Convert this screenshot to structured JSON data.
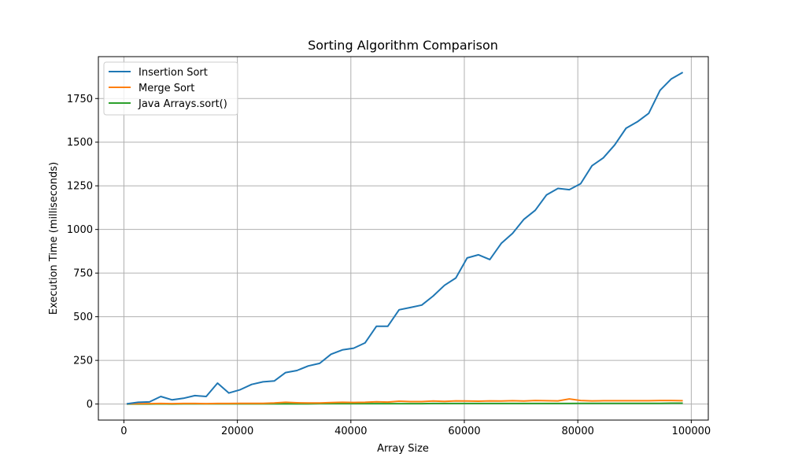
{
  "chart_data": {
    "type": "line",
    "title": "Sorting Algorithm Comparison",
    "xlabel": "Array Size",
    "ylabel": "Execution Time (milliseconds)",
    "xlim": [
      -4500,
      103000
    ],
    "ylim": [
      -92,
      1990
    ],
    "xticks": [
      0,
      20000,
      40000,
      60000,
      80000,
      100000
    ],
    "yticks": [
      0,
      250,
      500,
      750,
      1000,
      1250,
      1500,
      1750
    ],
    "grid": true,
    "legend_position": "top-left",
    "x": [
      500,
      2500,
      4500,
      6500,
      8500,
      10500,
      12500,
      14500,
      16500,
      18500,
      20500,
      22500,
      24500,
      26500,
      28500,
      30500,
      32500,
      34500,
      36500,
      38500,
      40500,
      42500,
      44500,
      46500,
      48500,
      50500,
      52500,
      54500,
      56500,
      58500,
      60500,
      62500,
      64500,
      66500,
      68500,
      70500,
      72500,
      74500,
      76500,
      78500,
      80500,
      82500,
      84500,
      86500,
      88500,
      90500,
      92500,
      94500,
      96500,
      98500
    ],
    "series": [
      {
        "name": "Insertion Sort",
        "color": "#1f77b4",
        "values": [
          1,
          10,
          12,
          43,
          24,
          33,
          48,
          43,
          120,
          63,
          82,
          112,
          127,
          132,
          180,
          192,
          218,
          233,
          285,
          310,
          320,
          350,
          445,
          445,
          540,
          553,
          567,
          618,
          680,
          722,
          837,
          855,
          828,
          920,
          978,
          1058,
          1110,
          1198,
          1235,
          1228,
          1262,
          1365,
          1410,
          1484,
          1580,
          1617,
          1665,
          1797,
          1863,
          1900
        ]
      },
      {
        "name": "Merge Sort",
        "color": "#ff7f0e",
        "values": [
          1,
          2,
          2,
          3,
          2,
          3,
          3,
          2,
          3,
          3,
          4,
          4,
          4,
          6,
          10,
          7,
          6,
          6,
          8,
          10,
          9,
          10,
          13,
          11,
          16,
          14,
          14,
          17,
          15,
          18,
          17,
          16,
          18,
          17,
          19,
          17,
          20,
          19,
          18,
          29,
          20,
          18,
          19,
          19,
          19,
          19,
          19,
          20,
          20,
          19
        ]
      },
      {
        "name": "Java Arrays.sort()",
        "color": "#2ca02c",
        "values": [
          0,
          0,
          0,
          1,
          0,
          1,
          1,
          1,
          1,
          1,
          1,
          1,
          1,
          1,
          1,
          1,
          1,
          2,
          2,
          2,
          2,
          2,
          2,
          2,
          2,
          2,
          2,
          3,
          3,
          3,
          3,
          3,
          3,
          3,
          3,
          3,
          3,
          3,
          3,
          3,
          4,
          4,
          4,
          4,
          4,
          4,
          4,
          4,
          5,
          5
        ]
      }
    ]
  }
}
